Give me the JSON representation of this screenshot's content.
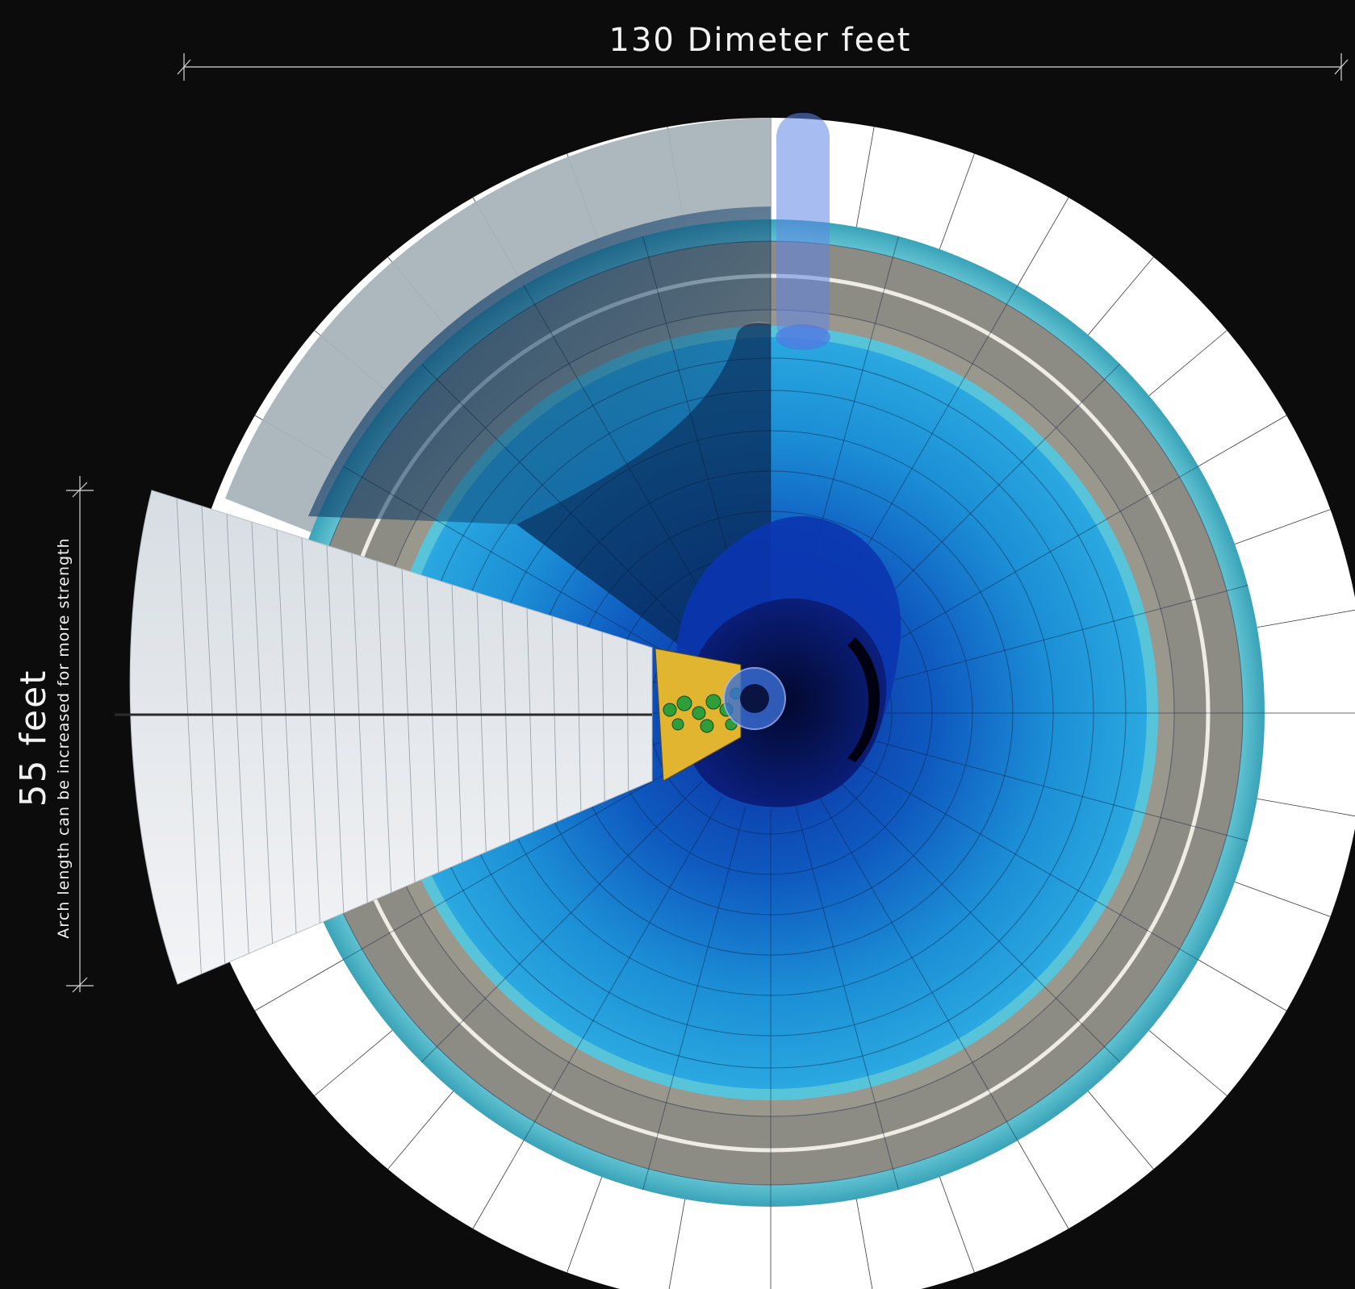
{
  "dimensions": {
    "diameter_label": "130 Dimeter feet",
    "height_label": "55 feet",
    "height_note": "Arch length can be increased for more strength"
  },
  "colors": {
    "background": "#0c0c0c",
    "outer_ring": "#ffffff",
    "teal_ring": "#6fd3df",
    "taupe_band": "#8a8a84",
    "inner_blue": "#1a86cf",
    "deep_blue": "#0b2fa0",
    "core_navy": "#040f4a",
    "arch_panel": "#e6e8eb",
    "gold_segment": "#e3b52b",
    "foliage": "#2e9b3a"
  }
}
